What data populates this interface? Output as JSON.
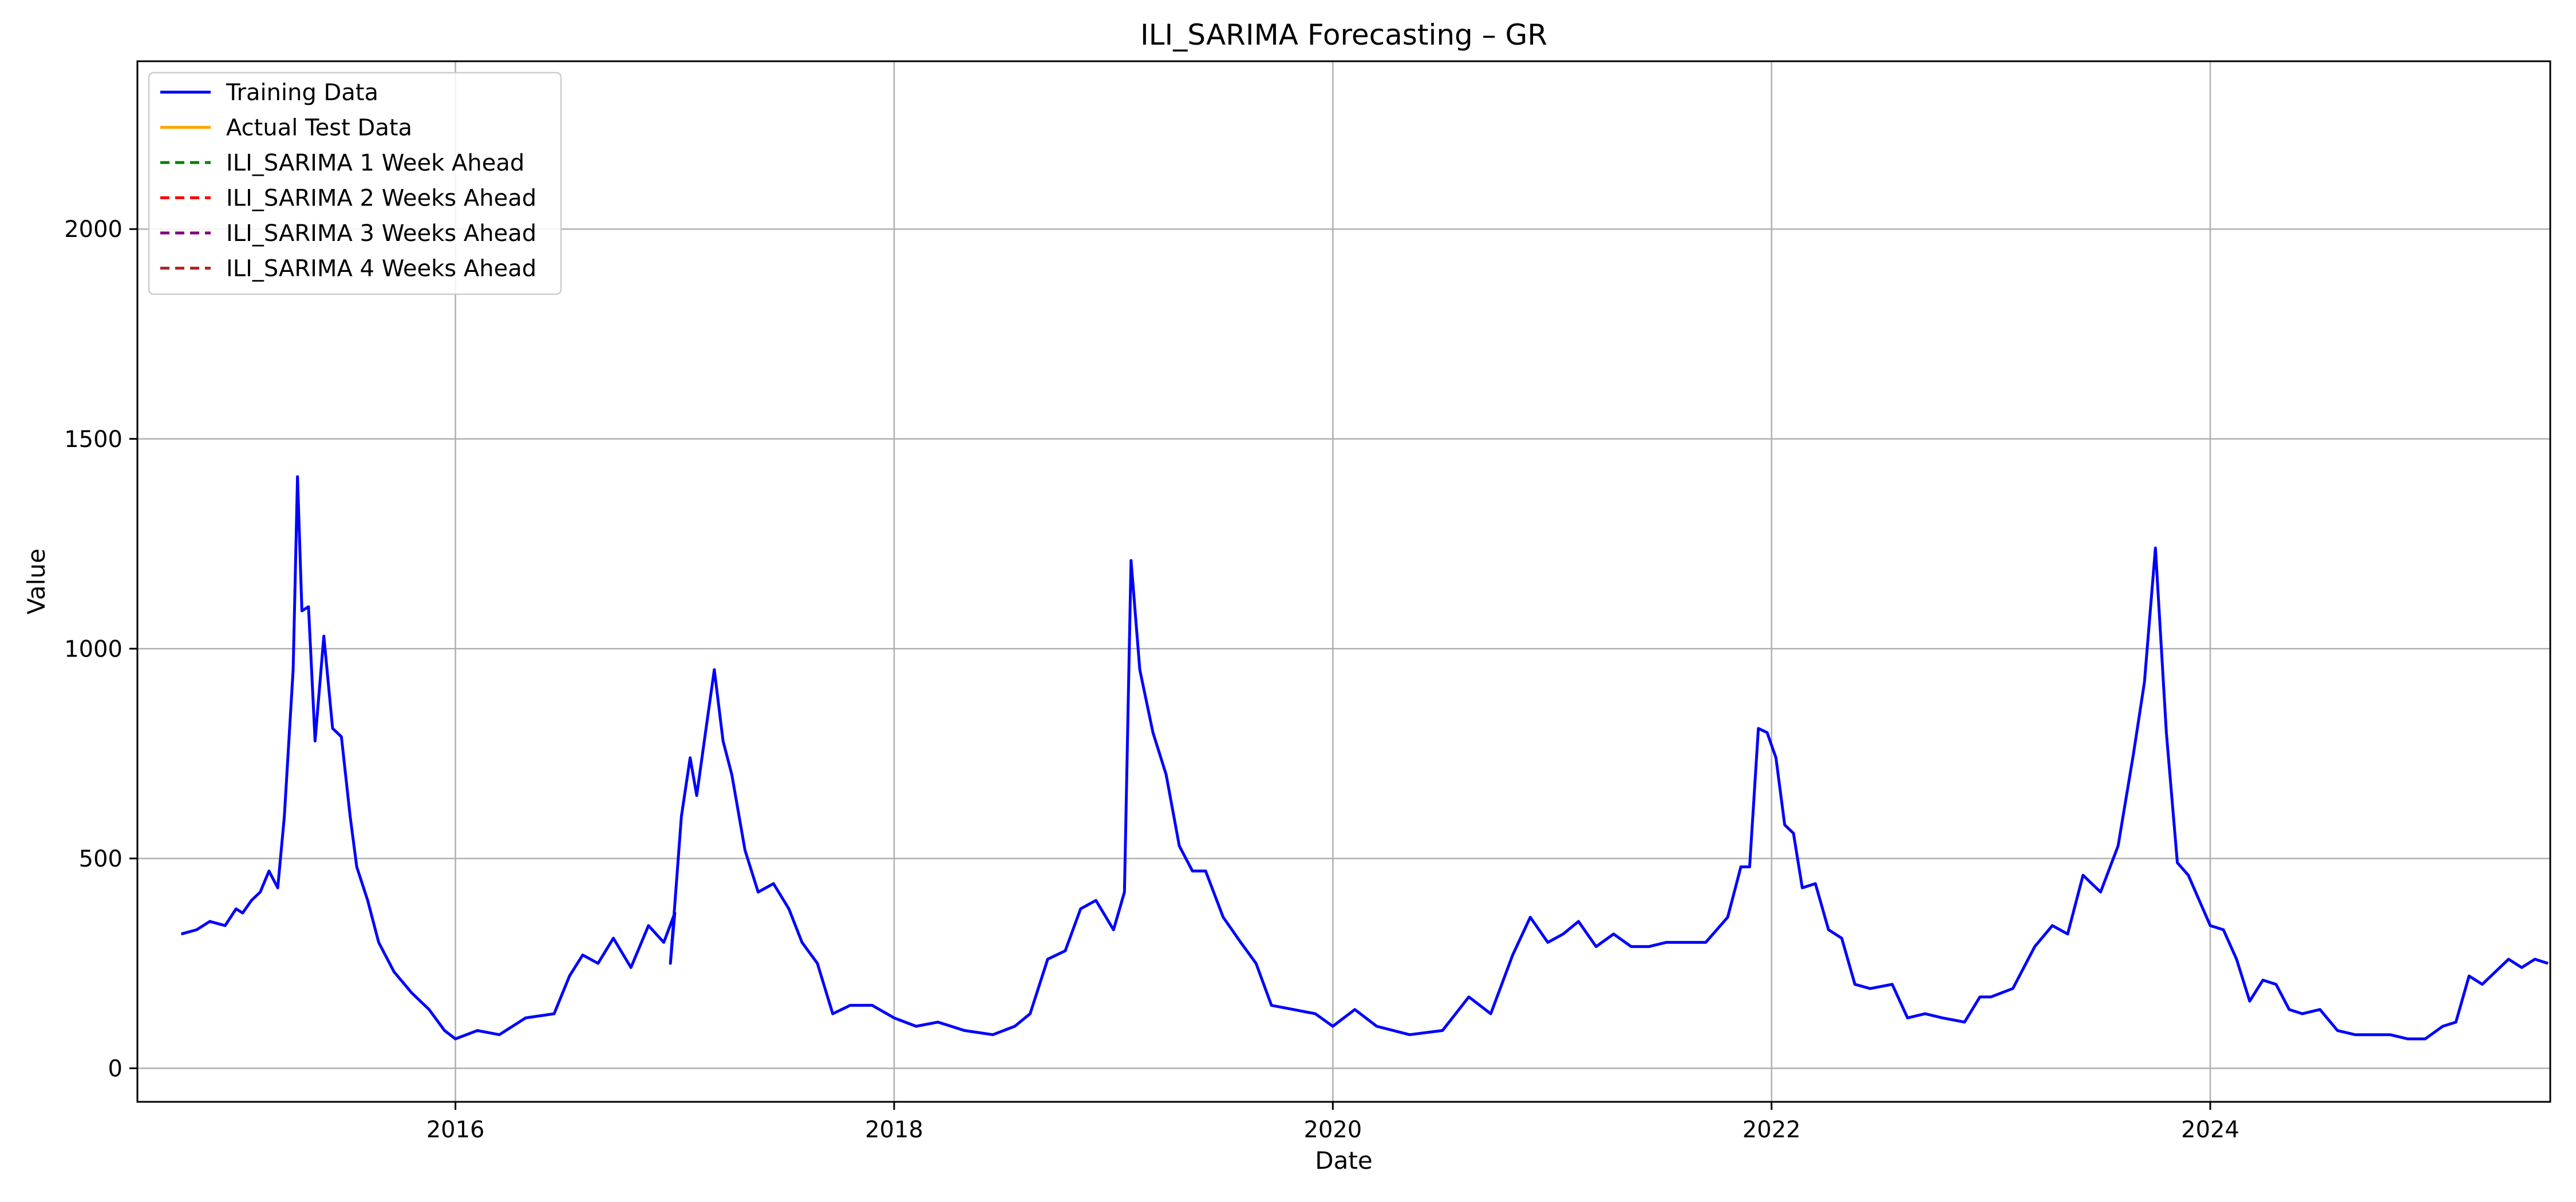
{
  "chart_data": {
    "type": "line",
    "title": "ILI_SARIMA Forecasting – GR",
    "xlabel": "Date",
    "ylabel": "Value",
    "xlim": [
      2014.55,
      2025.55
    ],
    "ylim": [
      -80,
      2400
    ],
    "xticks": [
      2016,
      2018,
      2020,
      2022,
      2024
    ],
    "yticks": [
      0,
      500,
      1000,
      1500,
      2000
    ],
    "grid": true,
    "legend_position": "top-left",
    "series": [
      {
        "name": "Training Data",
        "color": "#0000ff",
        "style": "solid",
        "points": [
          [
            2014.75,
            320
          ],
          [
            2014.82,
            330
          ],
          [
            2014.88,
            350
          ],
          [
            2014.95,
            340
          ],
          [
            2015.0,
            380
          ],
          [
            2015.03,
            370
          ],
          [
            2015.07,
            400
          ],
          [
            2015.11,
            420
          ],
          [
            2015.15,
            470
          ],
          [
            2015.19,
            430
          ],
          [
            2015.22,
            600
          ],
          [
            2015.26,
            950
          ],
          [
            2015.28,
            1410
          ],
          [
            2015.3,
            1090
          ],
          [
            2015.33,
            1100
          ],
          [
            2015.36,
            780
          ],
          [
            2015.4,
            1030
          ],
          [
            2015.44,
            810
          ],
          [
            2015.48,
            790
          ],
          [
            2015.52,
            600
          ],
          [
            2015.55,
            480
          ],
          [
            2015.6,
            400
          ],
          [
            2015.65,
            300
          ],
          [
            2015.72,
            230
          ],
          [
            2015.8,
            180
          ],
          [
            2015.88,
            140
          ],
          [
            2015.95,
            90
          ],
          [
            2016.0,
            70
          ],
          [
            2016.1,
            90
          ],
          [
            2016.2,
            80
          ],
          [
            2016.32,
            120
          ],
          [
            2016.45,
            130
          ],
          [
            2016.52,
            220
          ],
          [
            2016.58,
            270
          ],
          [
            2016.65,
            250
          ],
          [
            2016.72,
            310
          ],
          [
            2016.8,
            240
          ],
          [
            2016.88,
            340
          ],
          [
            2016.95,
            300
          ],
          [
            2017.0,
            370
          ],
          [
            2016.98,
            250
          ],
          [
            2017.03,
            600
          ],
          [
            2017.07,
            740
          ],
          [
            2017.1,
            650
          ],
          [
            2017.14,
            800
          ],
          [
            2017.18,
            950
          ],
          [
            2017.22,
            780
          ],
          [
            2017.26,
            700
          ],
          [
            2017.32,
            520
          ],
          [
            2017.38,
            420
          ],
          [
            2017.45,
            440
          ],
          [
            2017.52,
            380
          ],
          [
            2017.58,
            300
          ],
          [
            2017.65,
            250
          ],
          [
            2017.72,
            130
          ],
          [
            2017.8,
            150
          ],
          [
            2017.9,
            150
          ],
          [
            2018.0,
            120
          ],
          [
            2018.1,
            100
          ],
          [
            2018.2,
            110
          ],
          [
            2018.32,
            90
          ],
          [
            2018.45,
            80
          ],
          [
            2018.55,
            100
          ],
          [
            2018.62,
            130
          ],
          [
            2018.7,
            260
          ],
          [
            2018.78,
            280
          ],
          [
            2018.85,
            380
          ],
          [
            2018.92,
            400
          ],
          [
            2019.0,
            330
          ],
          [
            2019.05,
            420
          ],
          [
            2019.08,
            1210
          ],
          [
            2019.12,
            950
          ],
          [
            2019.18,
            800
          ],
          [
            2019.24,
            700
          ],
          [
            2019.3,
            530
          ],
          [
            2019.36,
            470
          ],
          [
            2019.42,
            470
          ],
          [
            2019.5,
            360
          ],
          [
            2019.58,
            300
          ],
          [
            2019.65,
            250
          ],
          [
            2019.72,
            150
          ],
          [
            2019.82,
            140
          ],
          [
            2019.92,
            130
          ],
          [
            2020.0,
            100
          ],
          [
            2020.1,
            140
          ],
          [
            2020.2,
            100
          ],
          [
            2020.35,
            80
          ],
          [
            2020.5,
            90
          ],
          [
            2020.62,
            170
          ],
          [
            2020.72,
            130
          ],
          [
            2020.82,
            270
          ],
          [
            2020.9,
            360
          ],
          [
            2020.98,
            300
          ],
          [
            2021.05,
            320
          ],
          [
            2021.12,
            350
          ],
          [
            2021.2,
            290
          ],
          [
            2021.28,
            320
          ],
          [
            2021.36,
            290
          ],
          [
            2021.44,
            290
          ],
          [
            2021.52,
            300
          ],
          [
            2021.6,
            300
          ],
          [
            2021.7,
            300
          ],
          [
            2021.8,
            360
          ],
          [
            2021.86,
            480
          ],
          [
            2021.9,
            480
          ],
          [
            2021.94,
            810
          ],
          [
            2021.98,
            800
          ],
          [
            2022.02,
            740
          ],
          [
            2022.06,
            580
          ],
          [
            2022.1,
            560
          ],
          [
            2022.14,
            430
          ],
          [
            2022.2,
            440
          ],
          [
            2022.26,
            330
          ],
          [
            2022.32,
            310
          ],
          [
            2022.38,
            200
          ],
          [
            2022.45,
            190
          ],
          [
            2022.55,
            200
          ],
          [
            2022.62,
            120
          ],
          [
            2022.7,
            130
          ],
          [
            2022.78,
            120
          ],
          [
            2022.88,
            110
          ],
          [
            2022.95,
            170
          ],
          [
            2023.0,
            170
          ],
          [
            2023.1,
            190
          ],
          [
            2023.2,
            290
          ],
          [
            2023.28,
            340
          ],
          [
            2023.35,
            320
          ],
          [
            2023.42,
            460
          ],
          [
            2023.5,
            420
          ],
          [
            2023.58,
            530
          ],
          [
            2023.65,
            750
          ],
          [
            2023.7,
            920
          ],
          [
            2023.75,
            1240
          ],
          [
            2023.8,
            800
          ],
          [
            2023.85,
            490
          ],
          [
            2023.9,
            460
          ],
          [
            2023.95,
            400
          ],
          [
            2024.0,
            340
          ],
          [
            2024.06,
            330
          ],
          [
            2024.12,
            260
          ],
          [
            2024.18,
            160
          ],
          [
            2024.24,
            210
          ],
          [
            2024.3,
            200
          ],
          [
            2024.36,
            140
          ],
          [
            2024.42,
            130
          ],
          [
            2024.5,
            140
          ],
          [
            2024.58,
            90
          ],
          [
            2024.66,
            80
          ],
          [
            2024.74,
            80
          ],
          [
            2024.82,
            80
          ],
          [
            2024.9,
            70
          ],
          [
            2024.98,
            70
          ],
          [
            2025.06,
            100
          ],
          [
            2025.12,
            110
          ],
          [
            2025.18,
            220
          ],
          [
            2025.24,
            200
          ],
          [
            2025.3,
            230
          ],
          [
            2025.36,
            260
          ],
          [
            2025.42,
            240
          ],
          [
            2025.48,
            260
          ],
          [
            2025.54,
            250
          ]
        ]
      },
      {
        "name": "Actual Test Data",
        "color": "#ffa500",
        "style": "solid",
        "points": []
      },
      {
        "name": "ILI_SARIMA 1 Week Ahead",
        "color": "#008000",
        "style": "dashed",
        "points": []
      },
      {
        "name": "ILI_SARIMA 2 Weeks Ahead",
        "color": "#ff0000",
        "style": "dashed",
        "points": []
      },
      {
        "name": "ILI_SARIMA 3 Weeks Ahead",
        "color": "#800080",
        "style": "dashed",
        "points": []
      },
      {
        "name": "ILI_SARIMA 4 Weeks Ahead",
        "color": "#b22222",
        "style": "dashed",
        "points": []
      }
    ]
  }
}
